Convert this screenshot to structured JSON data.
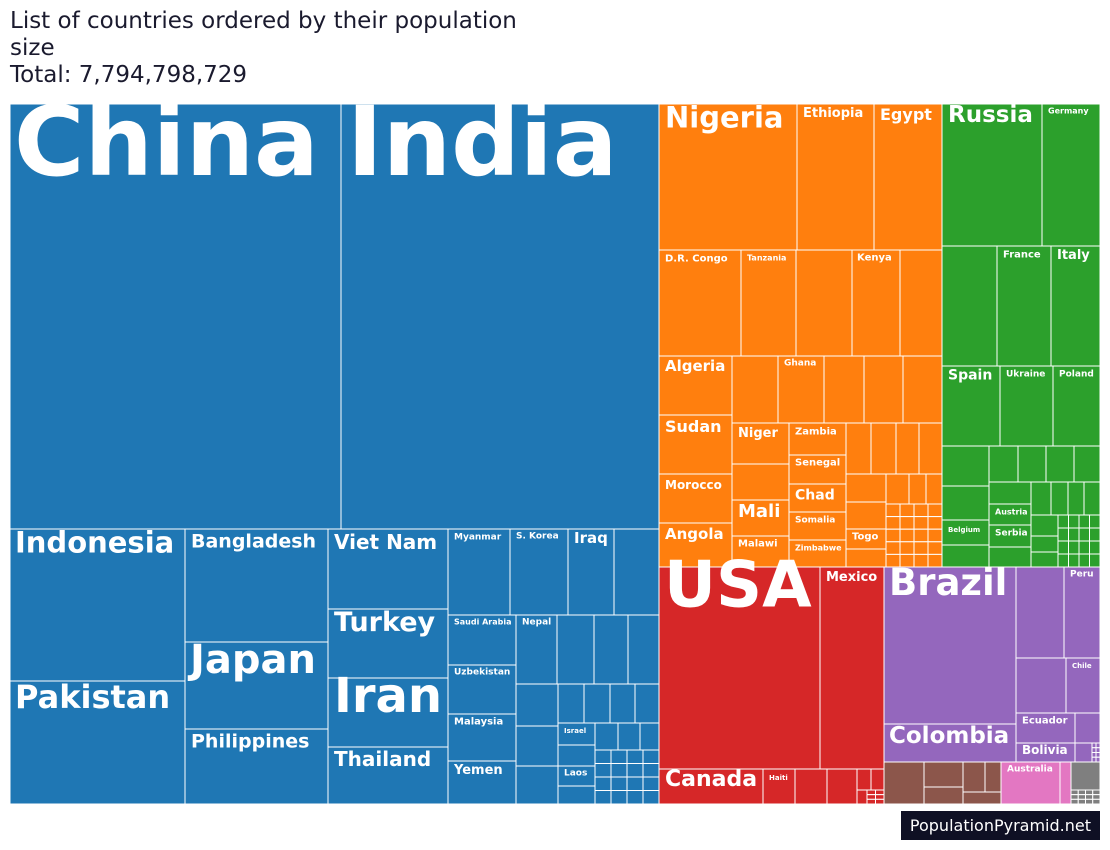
{
  "title_line1": "List of countries ordered by their population size",
  "title_line2": "Total: 7,794,798,729",
  "badge": "PopulationPyramid.net",
  "chart_data": {
    "type": "treemap",
    "title": "List of countries ordered by their population size",
    "total": 7794798729,
    "colors": {
      "Asia": "#1f77b4",
      "Africa": "#ff7f0e",
      "Europe": "#2ca02c",
      "North America": "#d62728",
      "South America": "#9467bd",
      "Oceania": "#e377c2",
      "Other": "#8c564b",
      "Grey": "#7f7f7f"
    },
    "countries": [
      {
        "name": "China",
        "region": "Asia"
      },
      {
        "name": "India",
        "region": "Asia"
      },
      {
        "name": "Indonesia",
        "region": "Asia"
      },
      {
        "name": "Pakistan",
        "region": "Asia"
      },
      {
        "name": "Bangladesh",
        "region": "Asia"
      },
      {
        "name": "Japan",
        "region": "Asia"
      },
      {
        "name": "Philippines",
        "region": "Asia"
      },
      {
        "name": "Viet Nam",
        "region": "Asia"
      },
      {
        "name": "Turkey",
        "region": "Asia"
      },
      {
        "name": "Iran",
        "region": "Asia"
      },
      {
        "name": "Thailand",
        "region": "Asia"
      },
      {
        "name": "Myanmar",
        "region": "Asia"
      },
      {
        "name": "S. Korea",
        "region": "Asia"
      },
      {
        "name": "Iraq",
        "region": "Asia"
      },
      {
        "name": "Saudi Arabia",
        "region": "Asia"
      },
      {
        "name": "Nepal",
        "region": "Asia"
      },
      {
        "name": "Uzbekistan",
        "region": "Asia"
      },
      {
        "name": "Malaysia",
        "region": "Asia"
      },
      {
        "name": "Yemen",
        "region": "Asia"
      },
      {
        "name": "Israel",
        "region": "Asia"
      },
      {
        "name": "Laos",
        "region": "Asia"
      },
      {
        "name": "Nigeria",
        "region": "Africa"
      },
      {
        "name": "Ethiopia",
        "region": "Africa"
      },
      {
        "name": "Egypt",
        "region": "Africa"
      },
      {
        "name": "D.R. Congo",
        "region": "Africa"
      },
      {
        "name": "Tanzania",
        "region": "Africa"
      },
      {
        "name": "Kenya",
        "region": "Africa"
      },
      {
        "name": "Algeria",
        "region": "Africa"
      },
      {
        "name": "Ghana",
        "region": "Africa"
      },
      {
        "name": "Sudan",
        "region": "Africa"
      },
      {
        "name": "Niger",
        "region": "Africa"
      },
      {
        "name": "Zambia",
        "region": "Africa"
      },
      {
        "name": "Senegal",
        "region": "Africa"
      },
      {
        "name": "Morocco",
        "region": "Africa"
      },
      {
        "name": "Mali",
        "region": "Africa"
      },
      {
        "name": "Chad",
        "region": "Africa"
      },
      {
        "name": "Somalia",
        "region": "Africa"
      },
      {
        "name": "Angola",
        "region": "Africa"
      },
      {
        "name": "Malawi",
        "region": "Africa"
      },
      {
        "name": "Zimbabwe",
        "region": "Africa"
      },
      {
        "name": "Togo",
        "region": "Africa"
      },
      {
        "name": "Russia",
        "region": "Europe"
      },
      {
        "name": "Germany",
        "region": "Europe"
      },
      {
        "name": "France",
        "region": "Europe"
      },
      {
        "name": "Italy",
        "region": "Europe"
      },
      {
        "name": "Spain",
        "region": "Europe"
      },
      {
        "name": "Ukraine",
        "region": "Europe"
      },
      {
        "name": "Poland",
        "region": "Europe"
      },
      {
        "name": "Austria",
        "region": "Europe"
      },
      {
        "name": "Belgium",
        "region": "Europe"
      },
      {
        "name": "Serbia",
        "region": "Europe"
      },
      {
        "name": "USA",
        "region": "North America"
      },
      {
        "name": "Mexico",
        "region": "North America"
      },
      {
        "name": "Canada",
        "region": "North America"
      },
      {
        "name": "Haiti",
        "region": "North America"
      },
      {
        "name": "Brazil",
        "region": "South America"
      },
      {
        "name": "Peru",
        "region": "South America"
      },
      {
        "name": "Chile",
        "region": "South America"
      },
      {
        "name": "Colombia",
        "region": "South America"
      },
      {
        "name": "Ecuador",
        "region": "South America"
      },
      {
        "name": "Bolivia",
        "region": "South America"
      },
      {
        "name": "Australia",
        "region": "Oceania"
      }
    ]
  }
}
